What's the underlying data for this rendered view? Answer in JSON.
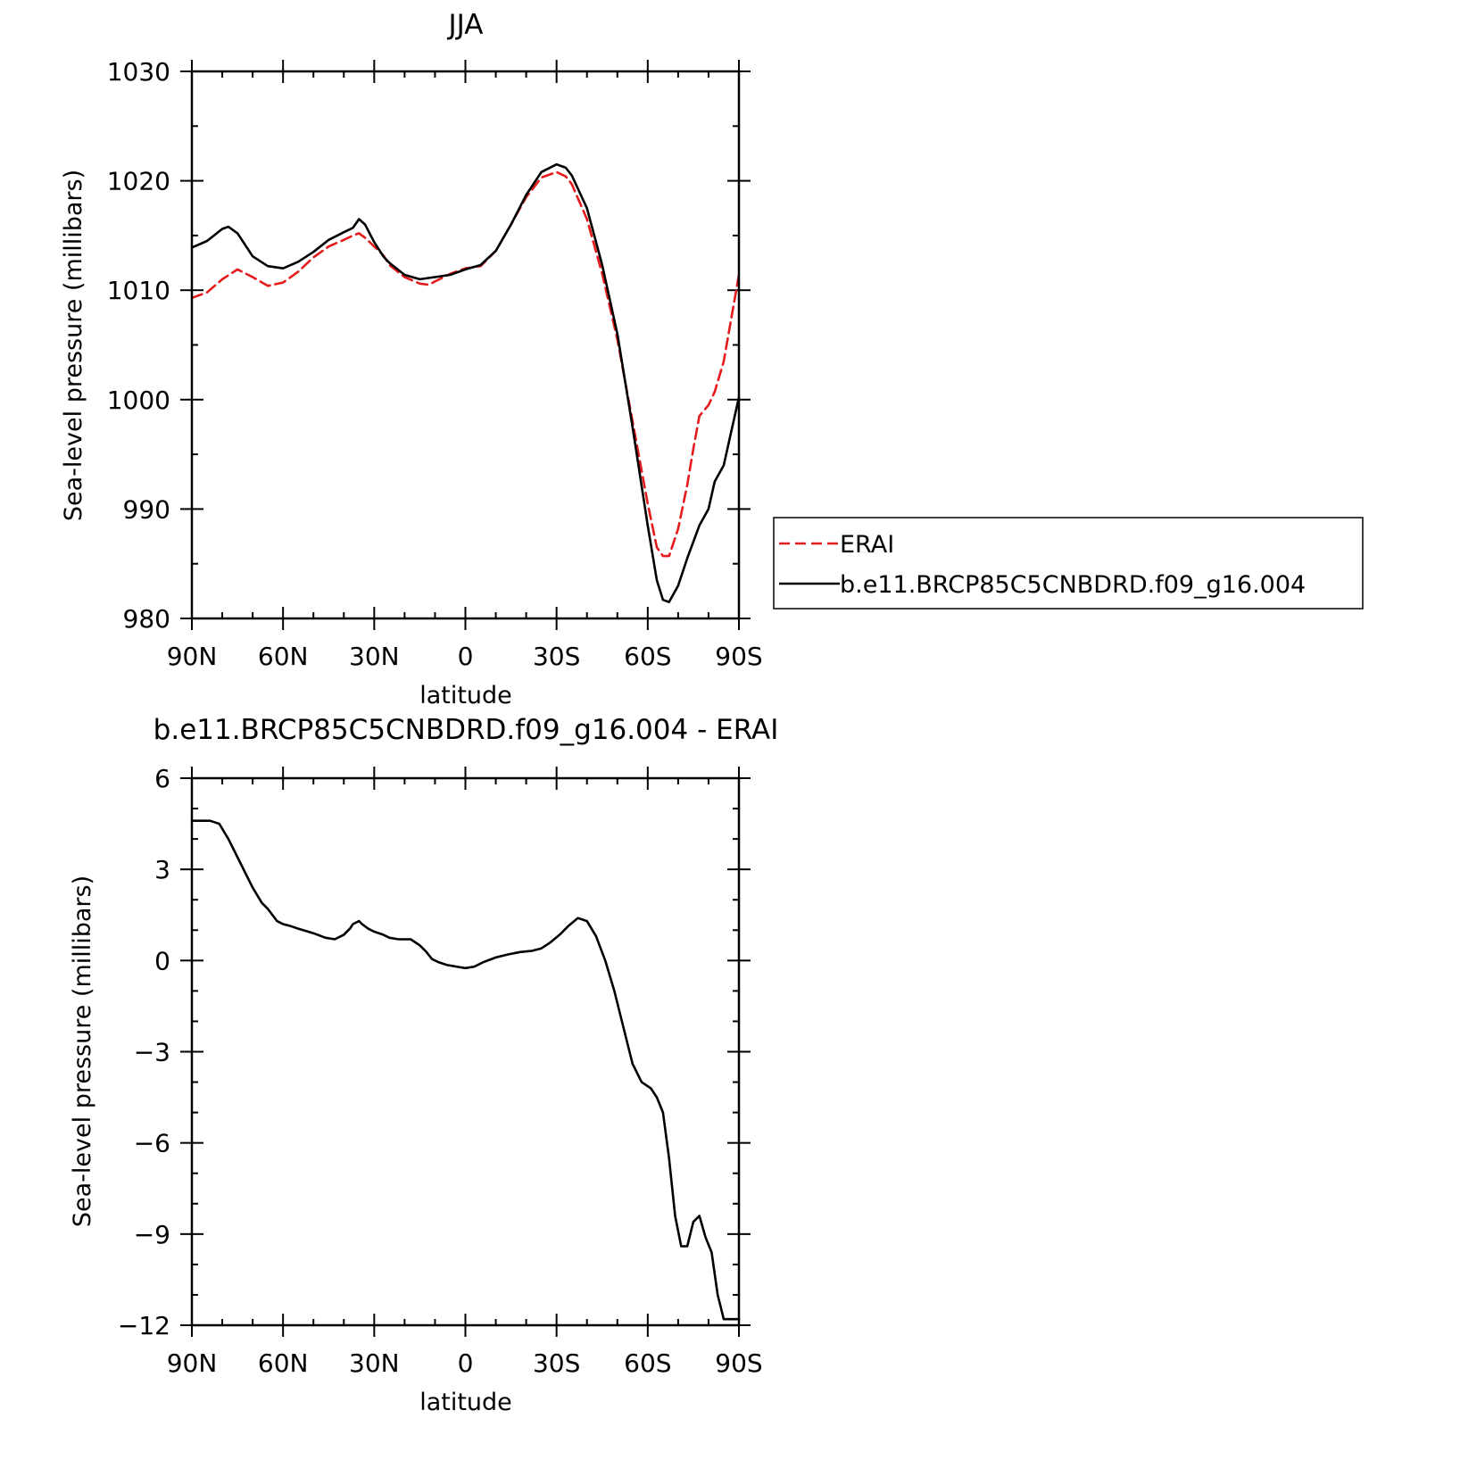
{
  "colors": {
    "erai": "#e41a1c",
    "model": "#000000",
    "axes": "#000000"
  },
  "chart_data": [
    {
      "type": "line",
      "title": "JJA",
      "xlabel": "latitude",
      "ylabel": "Sea-level pressure (millibars)",
      "xlim": [
        90,
        -90
      ],
      "ylim": [
        980,
        1030
      ],
      "x_ticks": [
        90,
        60,
        30,
        0,
        -30,
        -60,
        -90
      ],
      "x_tick_labels": [
        "90N",
        "60N",
        "30N",
        "0",
        "30S",
        "60S",
        "90S"
      ],
      "y_ticks": [
        980,
        990,
        1000,
        1010,
        1020,
        1030
      ],
      "y_tick_labels": [
        "980",
        "990",
        "1000",
        "1010",
        "1020",
        "1030"
      ],
      "legend_position": "right",
      "series": [
        {
          "name": "ERAI",
          "style": "dashed",
          "color": "#e41a1c",
          "x": [
            90,
            85,
            80,
            75,
            70,
            65,
            60,
            55,
            50,
            45,
            40,
            37,
            35,
            33,
            30,
            27,
            25,
            20,
            15,
            12,
            10,
            5,
            0,
            -5,
            -10,
            -15,
            -20,
            -25,
            -30,
            -33,
            -35,
            -40,
            -45,
            -50,
            -55,
            -60,
            -63,
            -65,
            -67,
            -70,
            -73,
            -75,
            -77,
            -80,
            -82,
            -85,
            -90
          ],
          "y": [
            1009.3,
            1009.8,
            1011.0,
            1011.9,
            1011.2,
            1010.4,
            1010.7,
            1011.7,
            1013.0,
            1014.0,
            1014.6,
            1015.0,
            1015.2,
            1014.8,
            1014.0,
            1013.2,
            1012.3,
            1011.2,
            1010.6,
            1010.5,
            1010.8,
            1011.5,
            1012.0,
            1012.2,
            1013.6,
            1016.0,
            1018.5,
            1020.3,
            1020.8,
            1020.4,
            1019.7,
            1016.5,
            1011.5,
            1005.5,
            998.0,
            990.5,
            986.5,
            985.7,
            985.7,
            988.2,
            992.2,
            995.5,
            998.5,
            999.5,
            1000.7,
            1003.5,
            1011.4
          ]
        },
        {
          "name": "b.e11.BRCP85C5CNBDRD.f09_g16.004",
          "style": "solid",
          "color": "#000000",
          "x": [
            90,
            85,
            80,
            78,
            75,
            70,
            65,
            60,
            55,
            50,
            45,
            40,
            37,
            35,
            33,
            30,
            27,
            25,
            20,
            15,
            10,
            5,
            0,
            -5,
            -10,
            -15,
            -20,
            -25,
            -30,
            -33,
            -35,
            -40,
            -45,
            -50,
            -55,
            -60,
            -63,
            -65,
            -67,
            -70,
            -73,
            -75,
            -77,
            -80,
            -82,
            -85,
            -87,
            -90
          ],
          "y": [
            1013.9,
            1014.5,
            1015.6,
            1015.8,
            1015.2,
            1013.1,
            1012.2,
            1012.0,
            1012.6,
            1013.5,
            1014.6,
            1015.3,
            1015.7,
            1016.5,
            1016.0,
            1014.4,
            1013.1,
            1012.5,
            1011.4,
            1011.0,
            1011.2,
            1011.4,
            1011.9,
            1012.3,
            1013.6,
            1016.0,
            1018.7,
            1020.8,
            1021.5,
            1021.2,
            1020.5,
            1017.5,
            1012.3,
            1006.0,
            997.5,
            988.5,
            983.5,
            981.7,
            981.5,
            983.0,
            985.5,
            987.0,
            988.5,
            990.0,
            992.5,
            994.0,
            996.5,
            1000.2
          ]
        }
      ]
    },
    {
      "type": "line",
      "title": "b.e11.BRCP85C5CNBDRD.f09_g16.004 - ERAI",
      "xlabel": "latitude",
      "ylabel": "Sea-level pressure (millibars)",
      "xlim": [
        90,
        -90
      ],
      "ylim": [
        -12,
        6
      ],
      "x_ticks": [
        90,
        60,
        30,
        0,
        -30,
        -60,
        -90
      ],
      "x_tick_labels": [
        "90N",
        "60N",
        "30N",
        "0",
        "30S",
        "60S",
        "90S"
      ],
      "y_ticks": [
        -12,
        -9,
        -6,
        -3,
        0,
        3,
        6
      ],
      "y_tick_labels": [
        "−12",
        "−9",
        "−6",
        "−3",
        "0",
        "3",
        "6"
      ],
      "series": [
        {
          "name": "",
          "style": "solid",
          "color": "#000000",
          "x": [
            90,
            87,
            84,
            81,
            78,
            75,
            72,
            70,
            67,
            65,
            62,
            60,
            58,
            55,
            50,
            46,
            43,
            40,
            38,
            37,
            35,
            34,
            32,
            30,
            27,
            25,
            22,
            18,
            15,
            13,
            11,
            9,
            6,
            3,
            0,
            -3,
            -6,
            -10,
            -14,
            -18,
            -22,
            -25,
            -28,
            -31,
            -34,
            -37,
            -40,
            -43,
            -46,
            -49,
            -52,
            -55,
            -58,
            -61,
            -63,
            -65,
            -67,
            -69,
            -71,
            -73,
            -75,
            -77,
            -79,
            -81,
            -83,
            -85,
            -87,
            -89,
            -90
          ],
          "y": [
            4.6,
            4.6,
            4.6,
            4.5,
            4.0,
            3.4,
            2.8,
            2.4,
            1.9,
            1.7,
            1.3,
            1.2,
            1.15,
            1.05,
            0.9,
            0.75,
            0.7,
            0.85,
            1.05,
            1.2,
            1.3,
            1.2,
            1.05,
            0.95,
            0.85,
            0.75,
            0.7,
            0.7,
            0.5,
            0.3,
            0.05,
            -0.05,
            -0.15,
            -0.2,
            -0.25,
            -0.2,
            -0.05,
            0.1,
            0.2,
            0.28,
            0.32,
            0.4,
            0.6,
            0.85,
            1.15,
            1.4,
            1.3,
            0.8,
            0.0,
            -1.0,
            -2.2,
            -3.4,
            -4.0,
            -4.2,
            -4.5,
            -5.0,
            -6.5,
            -8.4,
            -9.4,
            -9.4,
            -8.6,
            -8.4,
            -9.1,
            -9.6,
            -11.0,
            -11.8,
            -11.8,
            -11.8,
            -11.8
          ]
        }
      ]
    }
  ]
}
